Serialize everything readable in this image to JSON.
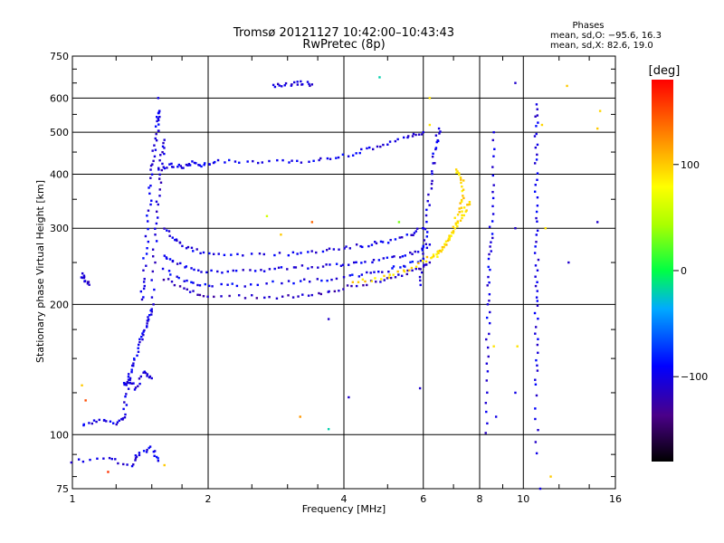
{
  "header": {
    "title_line1": "Tromsø 20121127 10:42:00–10:43:43",
    "title_line2": "RwPretec (8p)"
  },
  "stats": {
    "heading": "Phases",
    "line_o": "mean, sd,O: −95.6, 16.3",
    "line_x": "mean, sd,X:  82.6, 19.0"
  },
  "colorbar": {
    "unit_label": "[deg]",
    "ticks": [
      100,
      0,
      -100
    ],
    "tick_labels": [
      "100",
      "0",
      "−100"
    ],
    "range": [
      -180,
      180
    ]
  },
  "chart_data": {
    "type": "scatter",
    "title": "Tromsø 20121127 10:42:00–10:43:43",
    "subtitle": "RwPretec (8p)",
    "xlabel": "Frequency [MHz]",
    "ylabel": "Stationary phase Virtual Height [km]",
    "xscale": "log",
    "yscale": "log",
    "xlim": [
      1,
      16
    ],
    "ylim": [
      75,
      750
    ],
    "xticks": [
      1,
      2,
      4,
      6,
      8,
      10,
      16
    ],
    "xtick_labels": [
      "1",
      "2",
      "4",
      "6",
      "8",
      "10",
      "16"
    ],
    "yticks": [
      75,
      100,
      200,
      300,
      400,
      500,
      600,
      750
    ],
    "ytick_labels": [
      "75",
      "100",
      "200",
      "300",
      "400",
      "500",
      "600",
      "750"
    ],
    "grid": true,
    "color_by": "phase (deg)",
    "traces": [
      {
        "kind": "curve",
        "phase": -110,
        "pts": [
          [
            1.05,
            235
          ],
          [
            1.06,
            228
          ],
          [
            1.09,
            222
          ]
        ]
      },
      {
        "kind": "curve",
        "phase": -100,
        "pts": [
          [
            1.05,
            105
          ],
          [
            1.15,
            108
          ],
          [
            1.25,
            106
          ],
          [
            1.3,
            110
          ],
          [
            1.32,
            125
          ],
          [
            1.35,
            140
          ],
          [
            1.38,
            150
          ],
          [
            1.42,
            165
          ],
          [
            1.45,
            175
          ],
          [
            1.47,
            185
          ],
          [
            1.5,
            195
          ]
        ]
      },
      {
        "kind": "curve",
        "phase": -105,
        "pts": [
          [
            1.3,
            130
          ],
          [
            1.33,
            135
          ],
          [
            1.38,
            128
          ],
          [
            1.45,
            140
          ],
          [
            1.5,
            135
          ]
        ]
      },
      {
        "kind": "curve",
        "phase": -100,
        "pts": [
          [
            1.42,
            205
          ],
          [
            1.44,
            230
          ],
          [
            1.46,
            280
          ],
          [
            1.48,
            340
          ],
          [
            1.5,
            400
          ],
          [
            1.52,
            450
          ],
          [
            1.54,
            500
          ],
          [
            1.55,
            540
          ],
          [
            1.56,
            560
          ]
        ]
      },
      {
        "kind": "curve",
        "phase": -105,
        "pts": [
          [
            1.5,
            200
          ],
          [
            1.52,
            260
          ],
          [
            1.54,
            320
          ],
          [
            1.56,
            380
          ],
          [
            1.58,
            440
          ],
          [
            1.6,
            480
          ]
        ]
      },
      {
        "kind": "curve",
        "phase": -100,
        "pts": [
          [
            1.55,
            410
          ],
          [
            1.65,
            420
          ],
          [
            1.75,
            415
          ],
          [
            1.85,
            425
          ],
          [
            1.95,
            420
          ],
          [
            2.1,
            430
          ],
          [
            2.5,
            425
          ],
          [
            3.0,
            428
          ],
          [
            3.5,
            430
          ],
          [
            4.0,
            440
          ],
          [
            4.5,
            455
          ],
          [
            5.0,
            470
          ],
          [
            5.6,
            490
          ],
          [
            6.0,
            500
          ]
        ]
      },
      {
        "kind": "curve",
        "phase": -100,
        "pts": [
          [
            1.6,
            300
          ],
          [
            1.7,
            280
          ],
          [
            1.8,
            270
          ],
          [
            2.0,
            262
          ],
          [
            2.4,
            260
          ],
          [
            3.0,
            262
          ],
          [
            3.5,
            265
          ],
          [
            4.0,
            270
          ],
          [
            4.5,
            275
          ],
          [
            5.0,
            280
          ],
          [
            5.6,
            290
          ],
          [
            6.0,
            300
          ]
        ]
      },
      {
        "kind": "curve",
        "phase": -100,
        "pts": [
          [
            1.6,
            260
          ],
          [
            1.7,
            248
          ],
          [
            1.9,
            240
          ],
          [
            2.2,
            238
          ],
          [
            2.6,
            240
          ],
          [
            3.0,
            243
          ],
          [
            3.5,
            245
          ],
          [
            4.0,
            248
          ],
          [
            4.6,
            252
          ],
          [
            5.2,
            258
          ],
          [
            5.8,
            265
          ],
          [
            6.2,
            275
          ]
        ]
      },
      {
        "kind": "curve",
        "phase": -95,
        "pts": [
          [
            1.6,
            240
          ],
          [
            1.8,
            225
          ],
          [
            2.0,
            220
          ],
          [
            2.4,
            222
          ],
          [
            3.0,
            225
          ],
          [
            3.6,
            228
          ],
          [
            4.2,
            232
          ],
          [
            4.8,
            238
          ],
          [
            5.4,
            245
          ],
          [
            6.0,
            255
          ]
        ]
      },
      {
        "kind": "curve",
        "phase": -115,
        "pts": [
          [
            1.6,
            230
          ],
          [
            1.8,
            215
          ],
          [
            2.0,
            210
          ],
          [
            2.5,
            208
          ],
          [
            3.0,
            208
          ],
          [
            3.5,
            212
          ],
          [
            4.0,
            218
          ],
          [
            4.6,
            225
          ],
          [
            5.2,
            232
          ],
          [
            5.8,
            240
          ],
          [
            6.2,
            250
          ]
        ]
      },
      {
        "kind": "curve",
        "phase": -100,
        "pts": [
          [
            5.9,
            220
          ],
          [
            6.0,
            260
          ],
          [
            6.1,
            300
          ],
          [
            6.2,
            360
          ],
          [
            6.3,
            420
          ],
          [
            6.4,
            470
          ],
          [
            6.5,
            510
          ]
        ]
      },
      {
        "kind": "curve",
        "phase": 95,
        "pts": [
          [
            4.2,
            225
          ],
          [
            4.8,
            230
          ],
          [
            5.4,
            238
          ],
          [
            6.0,
            250
          ],
          [
            6.5,
            265
          ],
          [
            6.8,
            280
          ],
          [
            7.0,
            300
          ],
          [
            7.2,
            330
          ],
          [
            7.4,
            360
          ],
          [
            7.3,
            390
          ],
          [
            7.1,
            410
          ]
        ]
      },
      {
        "kind": "curve",
        "phase": 90,
        "pts": [
          [
            6.3,
            255
          ],
          [
            6.6,
            270
          ],
          [
            6.9,
            290
          ],
          [
            7.2,
            310
          ],
          [
            7.4,
            330
          ],
          [
            7.6,
            345
          ]
        ]
      },
      {
        "kind": "curve",
        "phase": -100,
        "pts": [
          [
            8.25,
            100
          ],
          [
            8.3,
            140
          ],
          [
            8.35,
            180
          ],
          [
            8.4,
            220
          ],
          [
            8.45,
            260
          ],
          [
            8.5,
            300
          ],
          [
            8.55,
            380
          ],
          [
            8.6,
            500
          ]
        ]
      },
      {
        "kind": "curve",
        "phase": -100,
        "pts": [
          [
            10.7,
            90
          ],
          [
            10.7,
            130
          ],
          [
            10.7,
            160
          ],
          [
            10.7,
            200
          ],
          [
            10.7,
            230
          ],
          [
            10.7,
            280
          ],
          [
            10.7,
            340
          ],
          [
            10.7,
            420
          ],
          [
            10.7,
            500
          ],
          [
            10.7,
            580
          ]
        ]
      },
      {
        "kind": "curve",
        "phase": -110,
        "pts": [
          [
            2.8,
            640
          ],
          [
            3.0,
            645
          ],
          [
            3.2,
            650
          ],
          [
            3.4,
            645
          ]
        ]
      },
      {
        "kind": "curve",
        "phase": -100,
        "pts": [
          [
            1.0,
            87
          ],
          [
            1.2,
            88
          ],
          [
            1.35,
            85
          ],
          [
            1.4,
            90
          ],
          [
            1.5,
            93
          ],
          [
            1.55,
            87
          ]
        ]
      }
    ],
    "scatter": [
      {
        "x": 1.55,
        "y": 600,
        "phase": -100
      },
      {
        "x": 4.8,
        "y": 670,
        "phase": -20
      },
      {
        "x": 6.2,
        "y": 600,
        "phase": 90
      },
      {
        "x": 9.6,
        "y": 650,
        "phase": -110
      },
      {
        "x": 12.5,
        "y": 640,
        "phase": 100
      },
      {
        "x": 14.8,
        "y": 560,
        "phase": 95
      },
      {
        "x": 14.6,
        "y": 510,
        "phase": 100
      },
      {
        "x": 11.0,
        "y": 520,
        "phase": 95
      },
      {
        "x": 11.2,
        "y": 300,
        "phase": 90
      },
      {
        "x": 12.6,
        "y": 250,
        "phase": -110
      },
      {
        "x": 14.6,
        "y": 310,
        "phase": -110
      },
      {
        "x": 9.6,
        "y": 300,
        "phase": -110
      },
      {
        "x": 9.7,
        "y": 160,
        "phase": 90
      },
      {
        "x": 9.6,
        "y": 125,
        "phase": -100
      },
      {
        "x": 8.6,
        "y": 160,
        "phase": 90
      },
      {
        "x": 8.7,
        "y": 110,
        "phase": -100
      },
      {
        "x": 10.9,
        "y": 75,
        "phase": -100
      },
      {
        "x": 11.5,
        "y": 80,
        "phase": 100
      },
      {
        "x": 3.7,
        "y": 185,
        "phase": -110
      },
      {
        "x": 3.7,
        "y": 103,
        "phase": -20
      },
      {
        "x": 3.2,
        "y": 110,
        "phase": 120
      },
      {
        "x": 4.1,
        "y": 122,
        "phase": -110
      },
      {
        "x": 5.9,
        "y": 128,
        "phase": -110
      },
      {
        "x": 6.2,
        "y": 520,
        "phase": 90
      },
      {
        "x": 1.05,
        "y": 130,
        "phase": 100
      },
      {
        "x": 1.07,
        "y": 120,
        "phase": 150
      },
      {
        "x": 1.6,
        "y": 85,
        "phase": 100
      },
      {
        "x": 1.2,
        "y": 82,
        "phase": 160
      },
      {
        "x": 2.9,
        "y": 290,
        "phase": 100
      },
      {
        "x": 3.4,
        "y": 310,
        "phase": 140
      },
      {
        "x": 2.7,
        "y": 320,
        "phase": 60
      },
      {
        "x": 5.3,
        "y": 310,
        "phase": 30
      }
    ]
  }
}
